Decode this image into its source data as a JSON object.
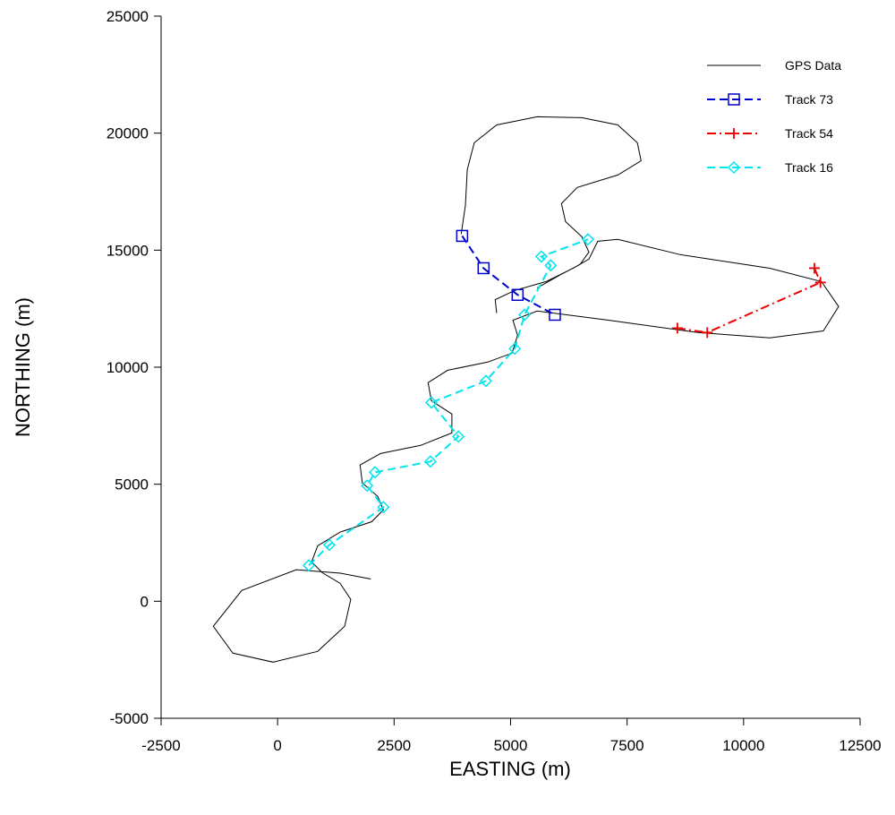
{
  "chart_data": {
    "type": "line",
    "x_label": "EASTING (m)",
    "y_label": "NORTHING (m)",
    "xlim": [
      -2500,
      12500
    ],
    "ylim": [
      -5000,
      25000
    ],
    "xticks": [
      -2500,
      0,
      2500,
      5000,
      7500,
      10000,
      12500
    ],
    "yticks": [
      -5000,
      0,
      5000,
      10000,
      15000,
      20000,
      25000
    ],
    "grid": false,
    "legend": "upper right",
    "series": [
      {
        "name": "GPS Data",
        "color": "#000000",
        "linestyle": "solid",
        "marker": "none",
        "x": [
          2000,
          1350,
          400,
          -770,
          -1380,
          -960,
          -100,
          860,
          1440,
          1570,
          1340,
          960,
          730,
          860,
          1340,
          2020,
          2270,
          2150,
          1820,
          1770,
          2210,
          3070,
          3740,
          3740,
          3300,
          3230,
          3650,
          4510,
          5030,
          5150,
          5050,
          5570,
          7100,
          9020,
          10560,
          11710,
          12040,
          11670,
          10560,
          8640,
          7300,
          6870,
          6680,
          6340,
          5760,
          5090,
          4670,
          4700,
          null,
          5570,
          6050,
          6490,
          6680,
          6530,
          6180,
          6090,
          6430,
          7300,
          7800,
          7720,
          7300,
          6530,
          5570,
          4700,
          4220,
          4070,
          4030,
          3940
        ],
        "values": [
          950,
          1200,
          1350,
          460,
          -1070,
          -2220,
          -2600,
          -2140,
          -1070,
          80,
          770,
          1220,
          1680,
          2370,
          2950,
          3400,
          3900,
          4480,
          5050,
          5820,
          6310,
          6660,
          7190,
          8000,
          8570,
          9340,
          9870,
          10220,
          10600,
          11360,
          12010,
          12400,
          12010,
          11480,
          11250,
          11550,
          12590,
          13660,
          14230,
          14810,
          15460,
          15380,
          14620,
          14230,
          13660,
          13280,
          12890,
          12320,
          null,
          13390,
          13930,
          14390,
          14920,
          15570,
          16220,
          16990,
          17680,
          18210,
          18820,
          19590,
          20350,
          20660,
          20700,
          20350,
          19590,
          18440,
          16910,
          15690
        ]
      },
      {
        "name": "Track 73",
        "color": "#0000cc",
        "linestyle": "dashed",
        "marker": "square",
        "x": [
          3960,
          4420,
          5150,
          5950
        ],
        "values": [
          15610,
          14230,
          13090,
          12240
        ]
      },
      {
        "name": "Track 54",
        "color": "#ee0000",
        "linestyle": "dashdot",
        "marker": "plus",
        "x": [
          11520,
          11650,
          9220,
          8580
        ],
        "values": [
          14230,
          13620,
          11480,
          11670
        ]
      },
      {
        "name": "Track 16",
        "color": "#00e5ee",
        "linestyle": "dashed",
        "marker": "diamond",
        "x": [
          670,
          1110,
          2270,
          1920,
          2090,
          3280,
          3880,
          3300,
          4470,
          5090,
          5300,
          5860,
          5660,
          6660
        ],
        "values": [
          1530,
          2410,
          4020,
          4940,
          5510,
          5970,
          7040,
          8490,
          9410,
          10790,
          12240,
          14350,
          14730,
          15460
        ]
      }
    ]
  }
}
